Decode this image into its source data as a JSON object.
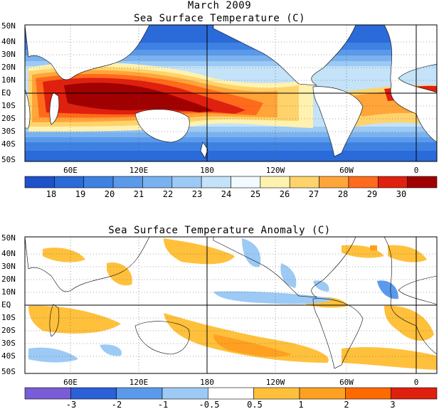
{
  "page": {
    "month_title": "March 2009"
  },
  "maps": [
    {
      "title": "Sea Surface Temperature (C)",
      "lat_labels": [
        "50N",
        "40N",
        "30N",
        "20N",
        "10N",
        "EQ",
        "10S",
        "20S",
        "30S",
        "40S",
        "50S"
      ],
      "lon_labels": [
        "60E",
        "120E",
        "180",
        "120W",
        "60W",
        "0"
      ],
      "colorbar": {
        "labels": [
          "18",
          "19",
          "20",
          "21",
          "22",
          "23",
          "24",
          "25",
          "26",
          "27",
          "28",
          "29",
          "30"
        ],
        "colors": [
          "#1f52c8",
          "#2b6ad9",
          "#3d82e3",
          "#5b9aeb",
          "#7ab2f0",
          "#9ccaf5",
          "#c4e2f8",
          "#f0faff",
          "#fff2b0",
          "#ffd36b",
          "#ffa53a",
          "#ff6a1c",
          "#e0200e",
          "#a00000"
        ]
      }
    },
    {
      "title": "Sea Surface Temperature Anomaly (C)",
      "lat_labels": [
        "50N",
        "40N",
        "30N",
        "20N",
        "10N",
        "EQ",
        "10S",
        "20S",
        "30S",
        "40S",
        "50S"
      ],
      "lon_labels": [
        "60E",
        "120E",
        "180",
        "120W",
        "60W",
        "0"
      ],
      "colorbar": {
        "labels": [
          "-3",
          "-2",
          "-1",
          "-0.5",
          "0.5",
          "1",
          "2",
          "3"
        ],
        "colors": [
          "#7a5cd6",
          "#2b60d6",
          "#5b9aeb",
          "#9ccaf5",
          "#ffffff",
          "#ffc03c",
          "#ffa020",
          "#ff6a00",
          "#e0200e"
        ]
      }
    }
  ]
}
